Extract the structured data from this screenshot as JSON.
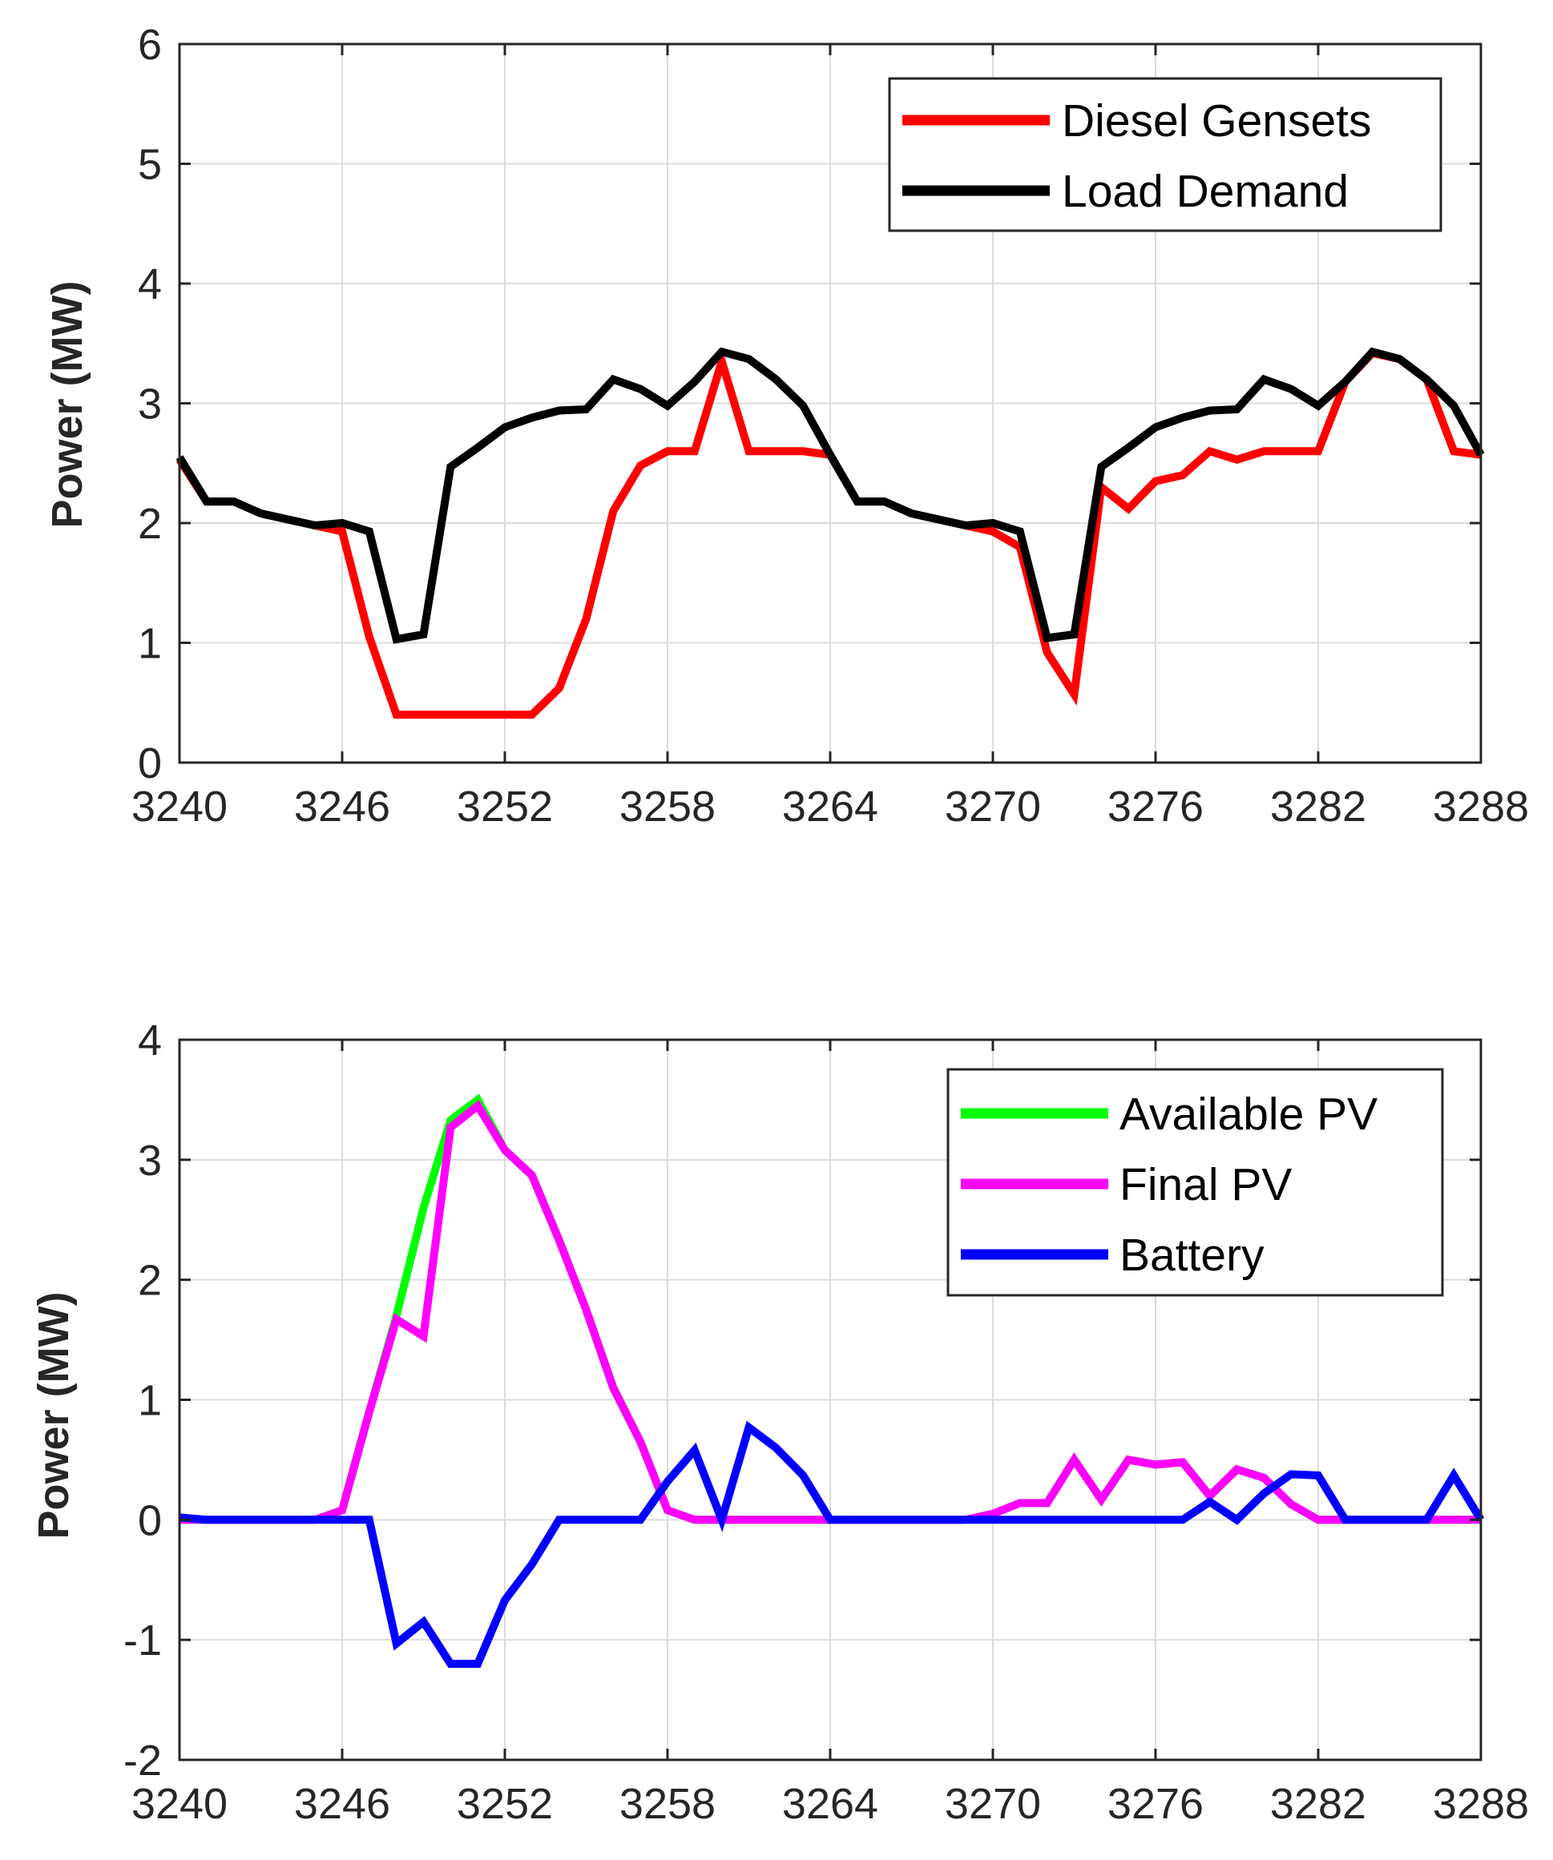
{
  "chart_data": [
    {
      "type": "line",
      "title": "",
      "xlabel": "",
      "ylabel": "Power (MW)",
      "xlim": [
        3240,
        3288
      ],
      "ylim": [
        0,
        6
      ],
      "xticks": [
        3240,
        3246,
        3252,
        3258,
        3264,
        3270,
        3276,
        3282,
        3288
      ],
      "yticks": [
        0,
        1,
        2,
        3,
        4,
        5,
        6
      ],
      "grid": true,
      "legend_position": "top-right",
      "x": [
        3240,
        3241,
        3242,
        3243,
        3244,
        3245,
        3246,
        3247,
        3248,
        3249,
        3250,
        3251,
        3252,
        3253,
        3254,
        3255,
        3256,
        3257,
        3258,
        3259,
        3260,
        3261,
        3262,
        3263,
        3264,
        3265,
        3266,
        3267,
        3268,
        3269,
        3270,
        3271,
        3272,
        3273,
        3274,
        3275,
        3276,
        3277,
        3278,
        3279,
        3280,
        3281,
        3282,
        3283,
        3284,
        3285,
        3286,
        3287,
        3288
      ],
      "series": [
        {
          "name": "Diesel Gensets",
          "color": "#ff0000",
          "values": [
            2.53,
            2.18,
            2.18,
            2.08,
            2.03,
            1.98,
            1.93,
            1.05,
            0.4,
            0.4,
            0.4,
            0.4,
            0.4,
            0.4,
            0.62,
            1.2,
            2.1,
            2.48,
            2.6,
            2.6,
            3.35,
            2.6,
            2.6,
            2.6,
            2.57,
            2.18,
            2.18,
            2.08,
            2.03,
            1.98,
            1.93,
            1.8,
            0.92,
            0.57,
            2.3,
            2.12,
            2.35,
            2.4,
            2.6,
            2.53,
            2.6,
            2.6,
            2.6,
            3.18,
            3.42,
            3.37,
            3.2,
            2.6,
            2.57
          ]
        },
        {
          "name": "Load Demand",
          "color": "#000000",
          "values": [
            2.55,
            2.18,
            2.18,
            2.08,
            2.03,
            1.98,
            2.0,
            1.93,
            1.03,
            1.07,
            2.47,
            2.63,
            2.8,
            2.88,
            2.94,
            2.95,
            3.2,
            3.12,
            2.98,
            3.18,
            3.43,
            3.37,
            3.2,
            2.98,
            2.57,
            2.18,
            2.18,
            2.08,
            2.03,
            1.98,
            2.0,
            1.93,
            1.04,
            1.07,
            2.47,
            2.63,
            2.8,
            2.88,
            2.94,
            2.95,
            3.2,
            3.12,
            2.98,
            3.18,
            3.43,
            3.37,
            3.2,
            2.98,
            2.57
          ]
        }
      ]
    },
    {
      "type": "line",
      "title": "",
      "xlabel": "",
      "ylabel": "Power (MW)",
      "xlim": [
        3240,
        3288
      ],
      "ylim": [
        -2,
        4
      ],
      "xticks": [
        3240,
        3246,
        3252,
        3258,
        3264,
        3270,
        3276,
        3282,
        3288
      ],
      "yticks": [
        -2,
        -1,
        0,
        1,
        2,
        3,
        4
      ],
      "grid": true,
      "legend_position": "top-right",
      "x": [
        3240,
        3241,
        3242,
        3243,
        3244,
        3245,
        3246,
        3247,
        3248,
        3249,
        3250,
        3251,
        3252,
        3253,
        3254,
        3255,
        3256,
        3257,
        3258,
        3259,
        3260,
        3261,
        3262,
        3263,
        3264,
        3265,
        3266,
        3267,
        3268,
        3269,
        3270,
        3271,
        3272,
        3273,
        3274,
        3275,
        3276,
        3277,
        3278,
        3279,
        3280,
        3281,
        3282,
        3283,
        3284,
        3285,
        3286,
        3287,
        3288
      ],
      "series": [
        {
          "name": "Available PV",
          "color": "#00ff00",
          "values": [
            0,
            0,
            0,
            0,
            0,
            0,
            0.08,
            0.9,
            1.7,
            2.6,
            3.33,
            3.5,
            3.08,
            2.87,
            2.33,
            1.75,
            1.1,
            0.65,
            0.08,
            0,
            0,
            0,
            0,
            0,
            0,
            0,
            0,
            0,
            0,
            0,
            0.05,
            0.14,
            0.14,
            0.5,
            0.17,
            0.5,
            0.46,
            0.48,
            0.2,
            0.42,
            0.35,
            0.13,
            0,
            0,
            0,
            0,
            0,
            0,
            0
          ]
        },
        {
          "name": "Final PV",
          "color": "#ff00ff",
          "values": [
            0,
            0,
            0,
            0,
            0,
            0,
            0.08,
            0.9,
            1.67,
            1.53,
            3.27,
            3.45,
            3.08,
            2.87,
            2.33,
            1.75,
            1.1,
            0.65,
            0.08,
            0,
            0,
            0,
            0,
            0,
            0,
            0,
            0,
            0,
            0,
            0,
            0.05,
            0.14,
            0.14,
            0.5,
            0.17,
            0.5,
            0.46,
            0.48,
            0.2,
            0.42,
            0.35,
            0.13,
            0,
            0,
            0,
            0,
            0,
            0,
            0
          ]
        },
        {
          "name": "Battery",
          "color": "#0000ff",
          "values": [
            0.02,
            0,
            0,
            0,
            0,
            0,
            0,
            0,
            -1.03,
            -0.85,
            -1.2,
            -1.2,
            -0.67,
            -0.37,
            0,
            0,
            0,
            0,
            0.32,
            0.58,
            0,
            0.77,
            0.6,
            0.37,
            0,
            0,
            0,
            0,
            0,
            0,
            0,
            0,
            0,
            0,
            0,
            0,
            0,
            0,
            0.15,
            0,
            0.22,
            0.38,
            0.37,
            0,
            0,
            0,
            0,
            0.37,
            0
          ]
        }
      ]
    }
  ]
}
